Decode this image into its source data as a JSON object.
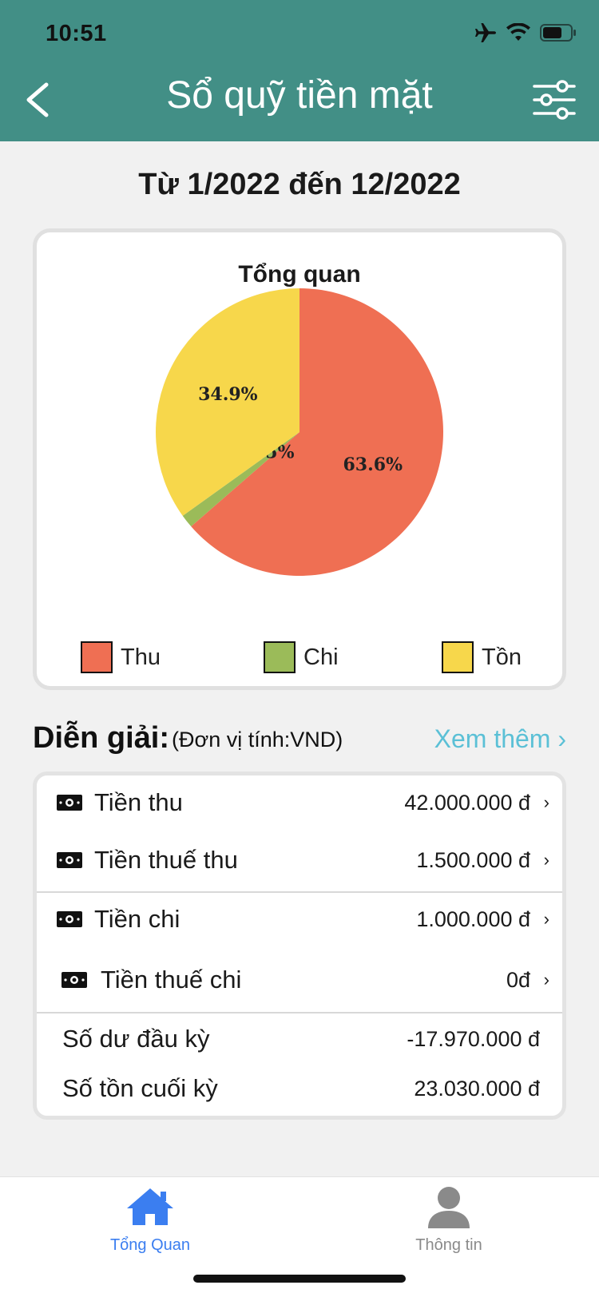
{
  "status": {
    "time": "10:51"
  },
  "header": {
    "title": "Sổ quỹ tiền mặt"
  },
  "period": "Từ 1/2022 đến 12/2022",
  "chart": {
    "title": "Tổng quan",
    "legend": [
      {
        "label": "Thu",
        "color": "#ef6f53"
      },
      {
        "label": "Chi",
        "color": "#9bbb59"
      },
      {
        "label": "Tồn",
        "color": "#f7d74b"
      }
    ]
  },
  "chart_data": {
    "type": "pie",
    "title": "Tổng quan",
    "slices": [
      {
        "label": "Thu",
        "value": 63.6,
        "display": "63.6%",
        "color": "#ef6f53"
      },
      {
        "label": "Chi",
        "value": 1.5,
        "display": "1.5%",
        "color": "#9bbb59"
      },
      {
        "label": "Tồn",
        "value": 34.9,
        "display": "34.9%",
        "color": "#f7d74b"
      }
    ],
    "legend_position": "bottom"
  },
  "details": {
    "title": "Diễn giải:",
    "unit": "(Đơn vị tính:VND)",
    "see_more": "Xem thêm ›",
    "rows": [
      {
        "label": "Tiền thu",
        "value": "42.000.000 đ",
        "icon": "money-icon"
      },
      {
        "label": "Tiền thuế thu",
        "value": "1.500.000 đ",
        "icon": "money-icon"
      },
      {
        "label": "Tiền chi",
        "value": "1.000.000 đ",
        "icon": "money-icon"
      },
      {
        "label": "Tiền thuế chi",
        "value": "0đ",
        "icon": "money-icon"
      }
    ],
    "balances": [
      {
        "label": "Số dư đầu kỳ",
        "value": "-17.970.000 đ"
      },
      {
        "label": "Số tồn cuối kỳ",
        "value": "23.030.000 đ"
      }
    ],
    "chevron": "›"
  },
  "tabbar": {
    "tabs": [
      {
        "label": "Tổng Quan",
        "icon": "home-icon",
        "active": true,
        "color": "#3b7ef0"
      },
      {
        "label": "Thông tin",
        "icon": "person-icon",
        "active": false,
        "color": "#8a8a8a"
      }
    ]
  }
}
